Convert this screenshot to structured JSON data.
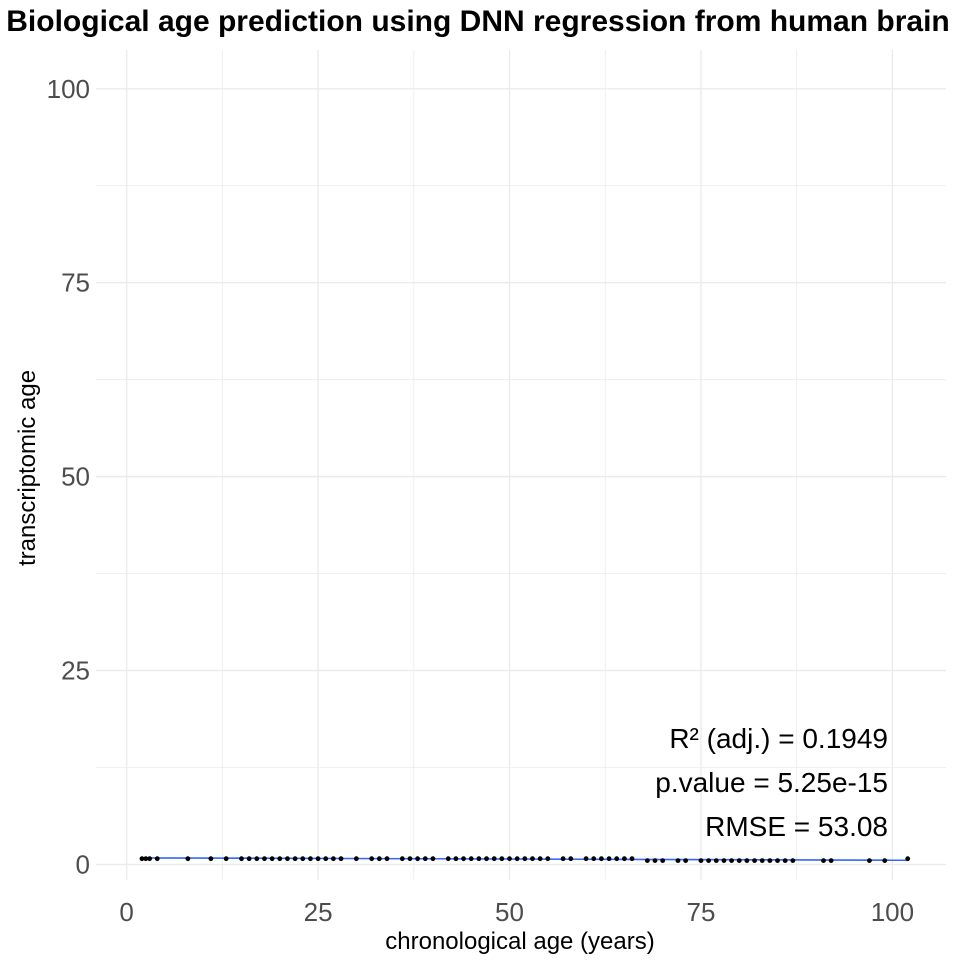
{
  "chart_data": {
    "type": "scatter",
    "title": "Biological age prediction using DNN regression from human brain",
    "xlabel": "chronological age (years)",
    "ylabel": "transcriptomic age",
    "xlim": [
      -4,
      107
    ],
    "ylim": [
      -2,
      105
    ],
    "x_ticks": [
      0,
      25,
      50,
      75,
      100
    ],
    "y_ticks": [
      0,
      25,
      50,
      75,
      100
    ],
    "grid": true,
    "legend": "none",
    "colors": {
      "point": "#000000",
      "fit_line": "#3366ff",
      "grid": "#ebebeb",
      "ticks": "#4d4d4d"
    },
    "series": [
      {
        "x": [
          2,
          2.5,
          3,
          4,
          8,
          11,
          13,
          15,
          16,
          17,
          18,
          19,
          20,
          21,
          22,
          23,
          24,
          25,
          26,
          27,
          28,
          30,
          32,
          33,
          34,
          36,
          37,
          38,
          39,
          40,
          42,
          43,
          44,
          45,
          46,
          47,
          48,
          49,
          50,
          51,
          52,
          53,
          54,
          55,
          57,
          58,
          60,
          61,
          62,
          63,
          64,
          65,
          66,
          68,
          69,
          70,
          72,
          73,
          75,
          76,
          77,
          78,
          79,
          80,
          81,
          82,
          83,
          84,
          85,
          86,
          87,
          91,
          92,
          97,
          99,
          102
        ],
        "y": [
          0.75,
          0.75,
          0.75,
          0.75,
          0.75,
          0.75,
          0.75,
          0.75,
          0.75,
          0.75,
          0.75,
          0.75,
          0.75,
          0.75,
          0.75,
          0.75,
          0.75,
          0.75,
          0.75,
          0.75,
          0.75,
          0.75,
          0.75,
          0.75,
          0.75,
          0.75,
          0.75,
          0.75,
          0.75,
          0.75,
          0.75,
          0.75,
          0.75,
          0.75,
          0.75,
          0.75,
          0.75,
          0.75,
          0.75,
          0.75,
          0.75,
          0.75,
          0.75,
          0.75,
          0.75,
          0.75,
          0.75,
          0.75,
          0.75,
          0.75,
          0.75,
          0.75,
          0.75,
          0.5,
          0.5,
          0.5,
          0.5,
          0.5,
          0.5,
          0.5,
          0.5,
          0.5,
          0.5,
          0.5,
          0.5,
          0.5,
          0.5,
          0.5,
          0.5,
          0.5,
          0.5,
          0.5,
          0.5,
          0.5,
          0.5,
          0.75
        ]
      }
    ],
    "fit_line": {
      "x": [
        2,
        102
      ],
      "y": [
        0.85,
        0.55
      ]
    },
    "annotations": [
      "R² (adj.) =  0.1949",
      "p.value = 5.25e-15",
      "RMSE = 53.08"
    ]
  }
}
